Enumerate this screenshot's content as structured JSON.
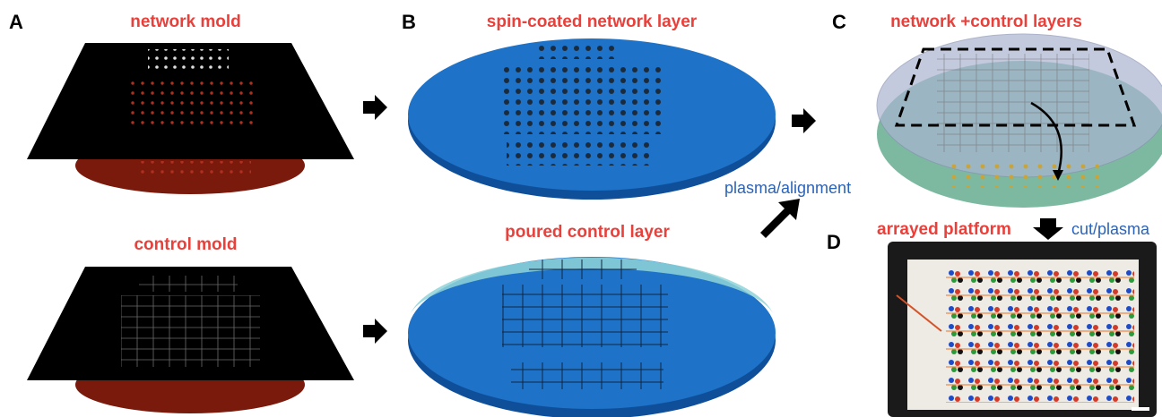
{
  "panels": [
    {
      "letter": "A",
      "labels": [
        "network mold",
        "control mold"
      ]
    },
    {
      "letter": "B",
      "labels": [
        "spin-coated network layer",
        "poured control layer"
      ]
    },
    {
      "letter": "C",
      "labels": [
        "network +control layers"
      ]
    },
    {
      "letter": "D",
      "labels": [
        "arrayed platform"
      ]
    }
  ],
  "steps": [
    "plasma/alignment",
    "cut/plasma"
  ]
}
